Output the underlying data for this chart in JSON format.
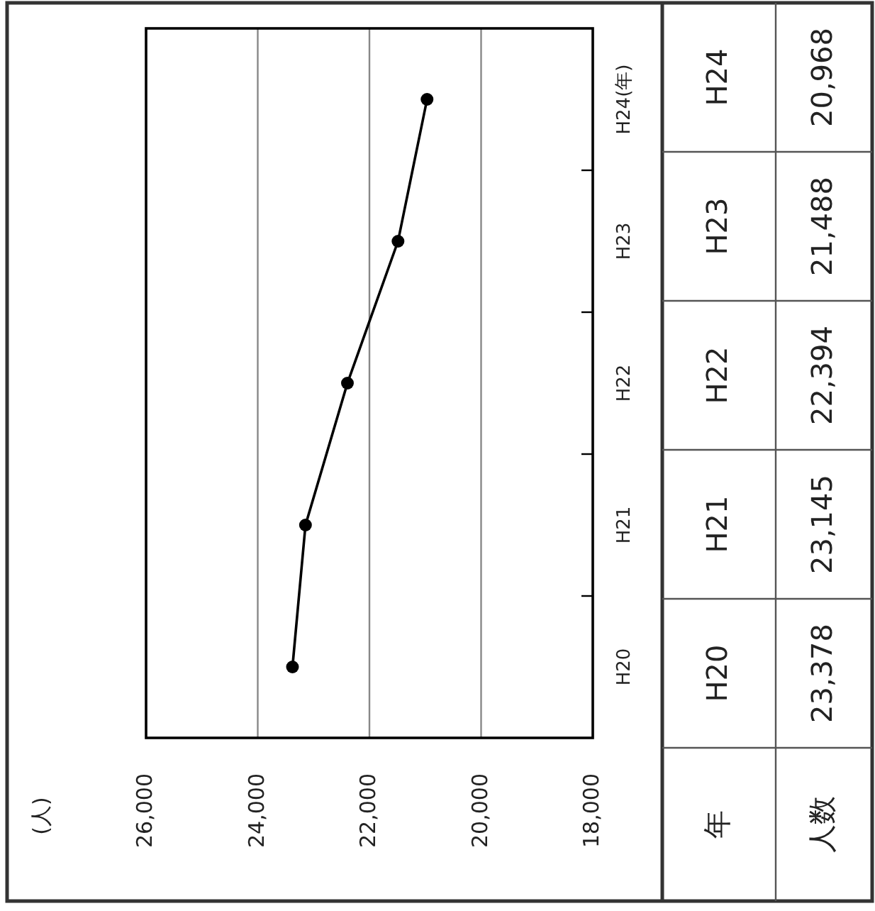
{
  "chart_data": {
    "type": "line",
    "orientation": "horizontal",
    "categories": [
      "H24",
      "H23",
      "H22",
      "H21",
      "H20"
    ],
    "values": [
      20968,
      21488,
      22394,
      23145,
      23378
    ],
    "value_labels": [
      "20,968",
      "21,488",
      "22,394",
      "23,145",
      "23,378"
    ],
    "color": "#000000",
    "marker": "circle",
    "grid": "x",
    "ylabel": "(年)",
    "xlim": [
      26000,
      18000
    ],
    "xticks": [
      {
        "value": 26000,
        "label": "26,000"
      },
      {
        "value": 24000,
        "label": "24,000"
      },
      {
        "value": 22000,
        "label": "22,000"
      },
      {
        "value": 20000,
        "label": "20,000"
      },
      {
        "value": 18000,
        "label": "18,000"
      }
    ],
    "annotations": [
      "年",
      "人数",
      "(人)"
    ]
  }
}
